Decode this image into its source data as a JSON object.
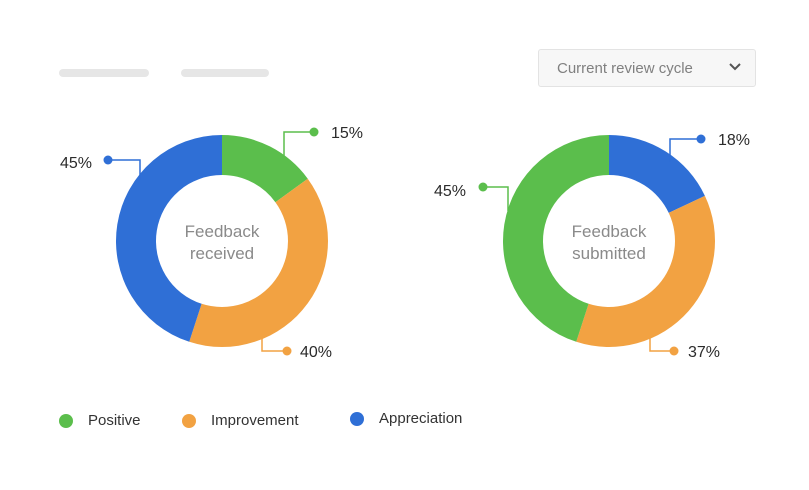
{
  "filter": {
    "selected": "Current review cycle"
  },
  "legend": [
    {
      "label": "Positive",
      "color": "#5bbe4c"
    },
    {
      "label": "Improvement",
      "color": "#f2a242"
    },
    {
      "label": "Appreciation",
      "color": "#2f6fd6"
    }
  ],
  "chart_data": [
    {
      "type": "pie",
      "title": "Feedback received",
      "center_label": [
        "Feedback",
        "received"
      ],
      "slices": [
        {
          "name": "Positive",
          "value": 15,
          "label": "15%"
        },
        {
          "name": "Improvement",
          "value": 40,
          "label": "40%"
        },
        {
          "name": "Appreciation",
          "value": 45,
          "label": "45%"
        }
      ],
      "colors": [
        "#5bbe4c",
        "#f2a242",
        "#2f6fd6"
      ]
    },
    {
      "type": "pie",
      "title": "Feedback submitted",
      "center_label": [
        "Feedback",
        "submitted"
      ],
      "slices": [
        {
          "name": "Appreciation",
          "value": 18,
          "label": "18%"
        },
        {
          "name": "Improvement",
          "value": 37,
          "label": "37%"
        },
        {
          "name": "Positive",
          "value": 45,
          "label": "45%"
        }
      ],
      "colors": [
        "#2f6fd6",
        "#f2a242",
        "#5bbe4c"
      ]
    }
  ]
}
